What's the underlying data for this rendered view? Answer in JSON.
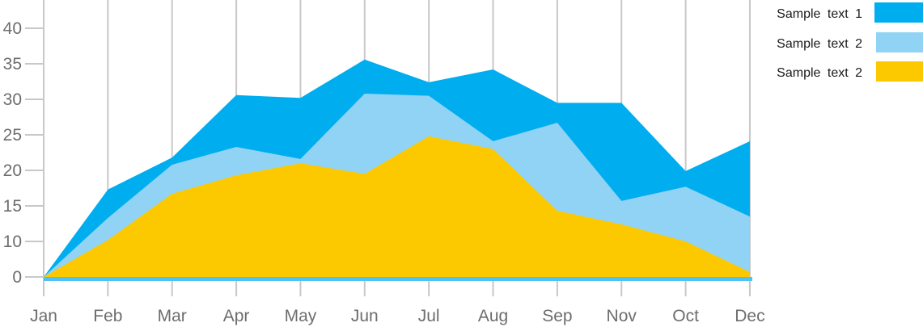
{
  "chart_data": {
    "type": "area",
    "title": "",
    "xlabel": "",
    "ylabel": "",
    "categories": [
      "Jan",
      "Feb",
      "Mar",
      "Apr",
      "May",
      "Jun",
      "Jul",
      "Aug",
      "Sep",
      "Nov",
      "Oct",
      "Dec"
    ],
    "y_tick_labels": [
      "0",
      "10",
      "15",
      "20",
      "25",
      "30",
      "35",
      "40"
    ],
    "ylim": [
      0,
      40
    ],
    "grid": "vertical",
    "legend_position": "top-right",
    "series": [
      {
        "name": "Sample text 1",
        "color": "#00AEEF",
        "values": [
          0,
          17.3,
          21.8,
          30.6,
          30.2,
          35.6,
          32.4,
          34.2,
          29.5,
          29.5,
          19.9,
          24.1
        ]
      },
      {
        "name": "Sample text 2",
        "color": "#91D3F5",
        "values": [
          0,
          13.3,
          20.8,
          23.3,
          21.6,
          30.8,
          30.5,
          24.1,
          26.7,
          15.7,
          17.7,
          13.5
        ]
      },
      {
        "name": "Sample text 2",
        "color": "#FCC900",
        "values": [
          0,
          10.2,
          16.7,
          19.3,
          21.0,
          19.5,
          24.8,
          23.0,
          14.3,
          12.4,
          10.0,
          1.4
        ]
      }
    ],
    "baseline_color": "#4EC3F1",
    "grid_color": "#C8C8C8"
  }
}
